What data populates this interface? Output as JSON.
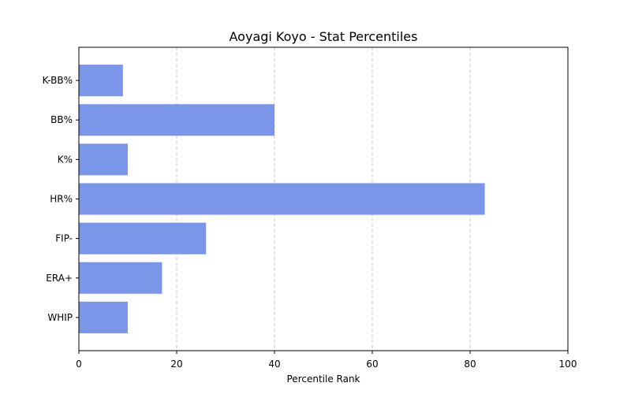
{
  "chart_data": {
    "type": "bar",
    "orientation": "horizontal",
    "title": "Aoyagi Koyo - Stat Percentiles",
    "xlabel": "Percentile Rank",
    "ylabel": "",
    "categories": [
      "WHIP",
      "ERA+",
      "FIP-",
      "HR%",
      "K%",
      "BB%",
      "K-BB%"
    ],
    "values": [
      10,
      17,
      26,
      83,
      10,
      40,
      9
    ],
    "xlim": [
      0,
      100
    ],
    "xticks": [
      0,
      20,
      40,
      60,
      80,
      100
    ],
    "grid": "x-dashed",
    "legend": "none",
    "bar_color": "#7b96e8",
    "grid_color": "#c8c8c8"
  }
}
